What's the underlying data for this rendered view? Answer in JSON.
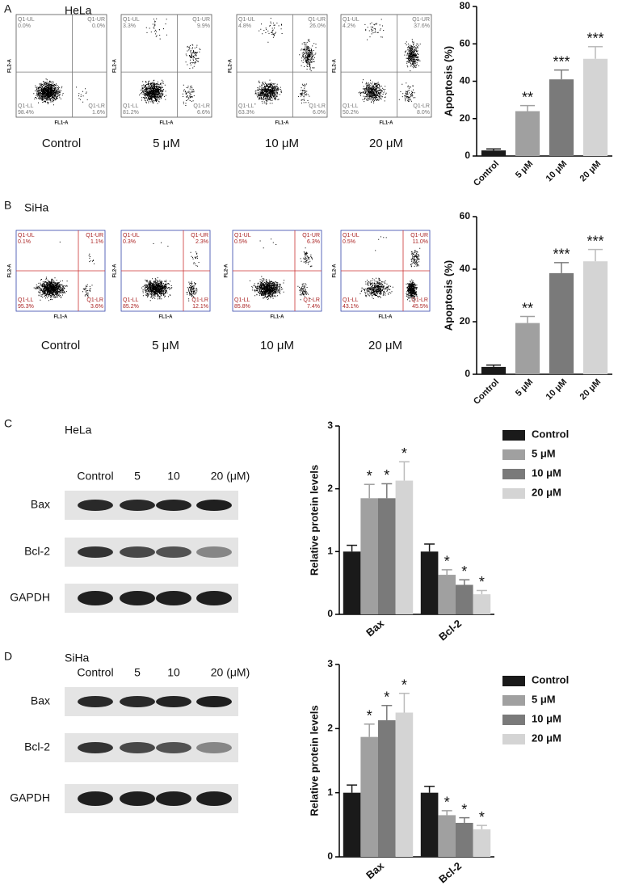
{
  "chart_data": [
    {
      "type": "bar",
      "ylabel": "Apoptosis (%)",
      "categories": [
        "Control",
        "5 μM",
        "10 μM",
        "20 μM"
      ],
      "values": [
        3,
        24,
        41,
        52
      ],
      "errors": [
        0.8,
        3,
        5,
        6.5
      ],
      "annotations": [
        null,
        "**",
        "***",
        "***"
      ],
      "colors": [
        "#1a1a1a",
        "#a0a0a0",
        "#7a7a7a",
        "#d4d4d4"
      ],
      "ylim": [
        0,
        80
      ],
      "yticks": [
        0,
        20,
        40,
        60,
        80
      ]
    },
    {
      "type": "bar",
      "ylabel": "Apoptosis (%)",
      "categories": [
        "Control",
        "5 μM",
        "10 μM",
        "20 μM"
      ],
      "values": [
        2.8,
        19.5,
        38.5,
        43
      ],
      "errors": [
        0.7,
        2.5,
        4,
        4.5
      ],
      "annotations": [
        null,
        "**",
        "***",
        "***"
      ],
      "colors": [
        "#1a1a1a",
        "#a0a0a0",
        "#7a7a7a",
        "#d4d4d4"
      ],
      "ylim": [
        0,
        60
      ],
      "yticks": [
        0,
        20,
        40,
        60
      ]
    },
    {
      "type": "bar",
      "ylabel": "Relative protein levels",
      "categories": [
        "Bax",
        "Bcl-2"
      ],
      "legend": "upper right",
      "ylim": [
        0,
        3
      ],
      "yticks": [
        0,
        1,
        2,
        3
      ],
      "series": [
        {
          "name": "Control",
          "color": "#1a1a1a",
          "values": [
            1.0,
            1.0
          ],
          "errors": [
            0.1,
            0.12
          ],
          "annotations": [
            null,
            null
          ]
        },
        {
          "name": "5 μM",
          "color": "#a0a0a0",
          "values": [
            1.85,
            0.63
          ],
          "errors": [
            0.22,
            0.08
          ],
          "annotations": [
            "*",
            "*"
          ]
        },
        {
          "name": "10 μM",
          "color": "#7a7a7a",
          "values": [
            1.85,
            0.47
          ],
          "errors": [
            0.23,
            0.08
          ],
          "annotations": [
            "*",
            "*"
          ]
        },
        {
          "name": "20 μM",
          "color": "#d4d4d4",
          "values": [
            2.13,
            0.32
          ],
          "errors": [
            0.3,
            0.06
          ],
          "annotations": [
            "*",
            "*"
          ]
        }
      ]
    },
    {
      "type": "bar",
      "ylabel": "Relative protein levels",
      "categories": [
        "Bax",
        "Bcl-2"
      ],
      "legend": "upper right",
      "ylim": [
        0,
        3
      ],
      "yticks": [
        0,
        1,
        2,
        3
      ],
      "series": [
        {
          "name": "Control",
          "color": "#1a1a1a",
          "values": [
            1.0,
            1.0
          ],
          "errors": [
            0.12,
            0.1
          ],
          "annotations": [
            null,
            null
          ]
        },
        {
          "name": "5 μM",
          "color": "#a0a0a0",
          "values": [
            1.87,
            0.65
          ],
          "errors": [
            0.2,
            0.07
          ],
          "annotations": [
            "*",
            "*"
          ]
        },
        {
          "name": "10 μM",
          "color": "#7a7a7a",
          "values": [
            2.13,
            0.53
          ],
          "errors": [
            0.23,
            0.08
          ],
          "annotations": [
            "*",
            "*"
          ]
        },
        {
          "name": "20 μM",
          "color": "#d4d4d4",
          "values": [
            2.25,
            0.43
          ],
          "errors": [
            0.3,
            0.06
          ],
          "annotations": [
            "*",
            "*"
          ]
        }
      ]
    }
  ],
  "flow_panels": [
    {
      "letter": "A",
      "cell_line": "HeLa",
      "x_label": "FL1-A",
      "y_label": "FL2-A",
      "box_color": "#555555",
      "gate_color": "#777777",
      "text_color": "#777777",
      "plots": [
        {
          "condition": "Control",
          "quadrants": [
            {
              "name": "Q1-UL",
              "value": "0.0%"
            },
            {
              "name": "Q1-UR",
              "value": "0.0%"
            },
            {
              "name": "Q1-LL",
              "value": "98.4%"
            },
            {
              "name": "Q1-LR",
              "value": "1.6%"
            }
          ]
        },
        {
          "condition": "5 μM",
          "quadrants": [
            {
              "name": "Q1-UL",
              "value": "3.3%"
            },
            {
              "name": "Q1-UR",
              "value": "9.9%"
            },
            {
              "name": "Q1-LL",
              "value": "81.2%"
            },
            {
              "name": "Q1-LR",
              "value": "6.6%"
            }
          ]
        },
        {
          "condition": "10 μM",
          "quadrants": [
            {
              "name": "Q1-UL",
              "value": "4.8%"
            },
            {
              "name": "Q1-UR",
              "value": "26.0%"
            },
            {
              "name": "Q1-LL",
              "value": "63.3%"
            },
            {
              "name": "Q1-LR",
              "value": "6.0%"
            }
          ]
        },
        {
          "condition": "20 μM",
          "quadrants": [
            {
              "name": "Q1-UL",
              "value": "4.2%"
            },
            {
              "name": "Q1-UR",
              "value": "37.6%"
            },
            {
              "name": "Q1-LL",
              "value": "50.2%"
            },
            {
              "name": "Q1-LR",
              "value": "8.0%"
            }
          ]
        }
      ]
    },
    {
      "letter": "B",
      "cell_line": "SiHa",
      "x_label": "FL1-A",
      "y_label": "FL2-A",
      "box_color": "#3344aa",
      "gate_color": "#cc3333",
      "text_color": "#aa2222",
      "plots": [
        {
          "condition": "Control",
          "quadrants": [
            {
              "name": "Q1-UL",
              "value": "0.1%"
            },
            {
              "name": "Q1-UR",
              "value": "1.1%"
            },
            {
              "name": "Q1-LL",
              "value": "95.3%"
            },
            {
              "name": "Q1-LR",
              "value": "3.6%"
            }
          ]
        },
        {
          "condition": "5 μM",
          "quadrants": [
            {
              "name": "Q1-UL",
              "value": "0.3%"
            },
            {
              "name": "Q1-UR",
              "value": "2.3%"
            },
            {
              "name": "Q1-LL",
              "value": "85.2%"
            },
            {
              "name": "Q1-LR",
              "value": "12.1%"
            }
          ]
        },
        {
          "condition": "10 μM",
          "quadrants": [
            {
              "name": "Q1-UL",
              "value": "0.5%"
            },
            {
              "name": "Q1-UR",
              "value": "6.3%"
            },
            {
              "name": "Q1-LL",
              "value": "85.8%"
            },
            {
              "name": "Q1-LR",
              "value": "7.4%"
            }
          ]
        },
        {
          "condition": "20 μM",
          "quadrants": [
            {
              "name": "Q1-UL",
              "value": "0.5%"
            },
            {
              "name": "Q1-UR",
              "value": "11.0%"
            },
            {
              "name": "Q1-LL",
              "value": "43.1%"
            },
            {
              "name": "Q1-LR",
              "value": "45.5%"
            }
          ]
        }
      ]
    }
  ],
  "blots": [
    {
      "letter": "C",
      "cell_line": "HeLa",
      "lanes": [
        "Control",
        "5",
        "10",
        "20 (μM)"
      ],
      "proteins": [
        "Bax",
        "Bcl-2",
        "GAPDH"
      ]
    },
    {
      "letter": "D",
      "cell_line": "SiHa",
      "lanes": [
        "Control",
        "5",
        "10",
        "20 (μM)"
      ],
      "proteins": [
        "Bax",
        "Bcl-2",
        "GAPDH"
      ]
    }
  ]
}
